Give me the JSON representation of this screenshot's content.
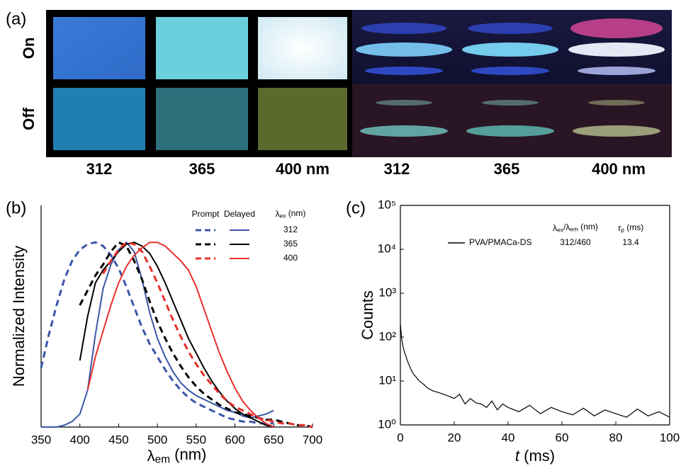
{
  "panel_a": {
    "label": "(a)",
    "rows": [
      "On",
      "Off"
    ],
    "wavelengths": [
      "312",
      "365",
      "400 nm",
      "312",
      "365",
      "400 nm"
    ]
  },
  "chart_data": [
    {
      "type": "line",
      "panel_label": "(b)",
      "ylabel": [
        {
          "text": "Normalized Intensity"
        }
      ],
      "xlabel": [
        {
          "text": "λ"
        },
        {
          "text": "em",
          "sub": true
        },
        {
          "text": " (nm)"
        }
      ],
      "x": [
        350,
        360,
        370,
        380,
        390,
        400,
        410,
        420,
        430,
        440,
        450,
        460,
        470,
        480,
        490,
        500,
        510,
        520,
        530,
        540,
        550,
        560,
        570,
        580,
        590,
        600,
        610,
        620,
        630,
        640,
        650,
        660,
        670,
        680,
        690,
        700
      ],
      "xlim": [
        350,
        700
      ],
      "xticks": [
        350,
        400,
        450,
        500,
        550,
        600,
        650,
        700
      ],
      "ylim": [
        0,
        1.2
      ],
      "legend": {
        "columns": [
          [
            {
              "text": "Prompt"
            }
          ],
          [
            {
              "text": "Delayed"
            }
          ],
          [
            {
              "text": "λ"
            },
            {
              "text": "ex",
              "sub": true
            },
            {
              "text": " (nm)"
            }
          ]
        ],
        "rows": [
          "312",
          "365",
          "400"
        ]
      },
      "series": [
        {
          "color": "#3a56a8",
          "dashed": true,
          "values": [
            0.32,
            0.5,
            0.66,
            0.8,
            0.9,
            0.96,
            0.99,
            1.0,
            0.98,
            0.93,
            0.86,
            0.76,
            0.65,
            0.54,
            0.45,
            0.38,
            0.31,
            0.25,
            0.2,
            0.16,
            0.13,
            0.11,
            0.09,
            0.07,
            0.05,
            0.04,
            0.03,
            0.03,
            0.02,
            0.02,
            0.02,
            null,
            null,
            null,
            null,
            null
          ]
        },
        {
          "color": "#3a56a8",
          "dashed": false,
          "values": [
            0,
            0,
            0,
            0.01,
            0.03,
            0.07,
            0.2,
            0.5,
            0.75,
            0.88,
            0.96,
            1.0,
            0.95,
            0.8,
            0.62,
            0.48,
            0.38,
            0.3,
            0.24,
            0.2,
            0.17,
            0.15,
            0.13,
            0.11,
            0.09,
            0.08,
            0.06,
            0.05,
            0.06,
            0.07,
            0.09,
            null,
            null,
            null,
            null,
            null
          ]
        },
        {
          "color": "#000000",
          "dashed": true,
          "values": [
            null,
            null,
            null,
            null,
            null,
            0.66,
            0.74,
            0.82,
            0.88,
            0.95,
            1.0,
            0.98,
            0.9,
            0.8,
            0.68,
            0.57,
            0.48,
            0.4,
            0.33,
            0.27,
            0.22,
            0.18,
            0.15,
            0.12,
            0.1,
            0.08,
            0.07,
            0.06,
            0.05,
            0.04,
            0.04,
            0.03,
            0.02,
            0.01,
            0.01,
            0
          ]
        },
        {
          "color": "#000000",
          "dashed": false,
          "values": [
            null,
            null,
            null,
            null,
            null,
            0.36,
            0.6,
            0.78,
            0.85,
            0.9,
            0.95,
            0.99,
            1.0,
            0.98,
            0.94,
            0.87,
            0.78,
            0.68,
            0.58,
            0.48,
            0.4,
            0.32,
            0.25,
            0.19,
            0.14,
            0.1,
            0.07,
            0.05,
            0.03,
            0.01,
            0,
            null,
            null,
            null,
            null,
            null
          ]
        },
        {
          "color": "#e8302a",
          "dashed": true,
          "values": [
            null,
            null,
            null,
            null,
            null,
            null,
            null,
            null,
            0.83,
            0.9,
            0.96,
            1.0,
            0.99,
            0.95,
            0.87,
            0.78,
            0.68,
            0.58,
            0.49,
            0.41,
            0.34,
            0.28,
            0.23,
            0.18,
            0.14,
            0.11,
            0.09,
            0.07,
            0.05,
            0.04,
            0.03,
            0.02,
            0.02,
            0.01,
            0.01,
            0
          ]
        },
        {
          "color": "#e8302a",
          "dashed": false,
          "values": [
            null,
            null,
            null,
            null,
            null,
            null,
            0.2,
            0.38,
            0.52,
            0.66,
            0.78,
            0.87,
            0.93,
            0.97,
            1.0,
            1.0,
            0.98,
            0.94,
            0.9,
            0.85,
            0.76,
            0.64,
            0.52,
            0.4,
            0.3,
            0.21,
            0.14,
            0.09,
            0.05,
            0.02,
            0,
            null,
            null,
            null,
            null,
            null
          ]
        }
      ]
    },
    {
      "type": "line",
      "panel_label": "(c)",
      "log_y": true,
      "ylabel": [
        {
          "text": "Counts"
        }
      ],
      "xlabel": [
        {
          "text": "t",
          "italic": true
        },
        {
          "text": " (ms)"
        }
      ],
      "xlim": [
        0,
        100
      ],
      "xticks": [
        0,
        20,
        40,
        60,
        80,
        100
      ],
      "ylim": [
        1,
        100000
      ],
      "yticks": [
        {
          "value": 1,
          "label": "10⁰"
        },
        {
          "value": 10,
          "label": "10¹"
        },
        {
          "value": 100,
          "label": "10²"
        },
        {
          "value": 1000,
          "label": "10³"
        },
        {
          "value": 10000,
          "label": "10⁴"
        },
        {
          "value": 100000,
          "label": "10⁵"
        }
      ],
      "table": {
        "header": [
          [
            {
              "text": "λ"
            },
            {
              "text": "ex",
              "sub": true
            },
            {
              "text": "/λ"
            },
            {
              "text": "em",
              "sub": true
            },
            {
              "text": " (nm)"
            }
          ],
          [
            {
              "text": "τ",
              "italic": true
            },
            {
              "text": "p",
              "sub": true
            },
            {
              "text": " (ms)"
            }
          ]
        ],
        "row": [
          "312/460",
          13.4
        ]
      },
      "x": [
        0,
        0.5,
        1,
        1.5,
        2,
        2.5,
        3,
        4,
        5,
        6,
        7,
        8,
        9,
        10,
        12,
        14,
        16,
        18,
        20,
        22,
        24,
        26,
        28,
        30,
        32,
        34,
        36,
        38,
        40,
        44,
        48,
        52,
        56,
        60,
        64,
        68,
        72,
        76,
        80,
        84,
        88,
        92,
        96,
        100
      ],
      "series": [
        {
          "name": "PVA/PMACa-DS",
          "color": "#000000",
          "dashed": false,
          "values": [
            200,
            90,
            60,
            45,
            38,
            30,
            25,
            18,
            14,
            12,
            10,
            9,
            8,
            7,
            6,
            5.5,
            5,
            4.5,
            4,
            5,
            3,
            4,
            3.2,
            3,
            2.5,
            3.5,
            2.2,
            3,
            2.5,
            2,
            2.8,
            1.8,
            2.5,
            2,
            1.7,
            2.4,
            1.6,
            2.2,
            1.8,
            1.5,
            2.3,
            1.6,
            2,
            1.5
          ]
        }
      ]
    }
  ]
}
